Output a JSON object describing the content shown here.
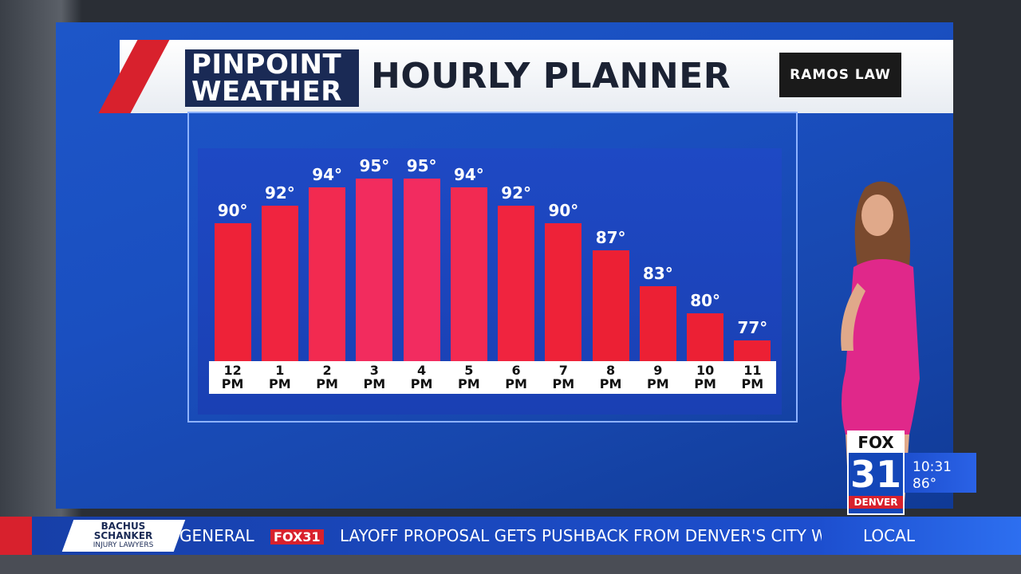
{
  "chart_data": {
    "type": "bar",
    "title": "HOURLY PLANNER",
    "categories": [
      "12\nPM",
      "1\nPM",
      "2\nPM",
      "3\nPM",
      "4\nPM",
      "5\nPM",
      "6\nPM",
      "7\nPM",
      "8\nPM",
      "9\nPM",
      "10\nPM",
      "11\nPM"
    ],
    "values": [
      90,
      92,
      94,
      95,
      95,
      94,
      92,
      90,
      87,
      83,
      80,
      77
    ],
    "value_labels": [
      "90°",
      "92°",
      "94°",
      "95°",
      "95°",
      "94°",
      "92°",
      "90°",
      "87°",
      "83°",
      "80°",
      "77°"
    ],
    "colors": [
      "#ee2238",
      "#f0243f",
      "#f22a50",
      "#f22c5e",
      "#f22c60",
      "#f22a52",
      "#f0243f",
      "#ee2238",
      "#ec2034",
      "#ec2034",
      "#ec2034",
      "#ec2034"
    ],
    "ylim": [
      74.7,
      98
    ]
  },
  "broadcast": {
    "logo": [
      "PINPOINT",
      "WEATHER"
    ],
    "sponsor": "RAMOS LAW",
    "station": [
      "FOX",
      "31",
      "DENVER"
    ],
    "time": "10:31",
    "temperature": "86°",
    "ticker": {
      "sponsor": [
        "BACHUS",
        "SCHANKER",
        "INJURY LAWYERS"
      ],
      "category": "GENERAL",
      "logo": "FOX31",
      "headline": "LAYOFF PROPOSAL GETS PUSHBACK FROM DENVER'S CITY WORK",
      "section": "LOCAL"
    }
  }
}
